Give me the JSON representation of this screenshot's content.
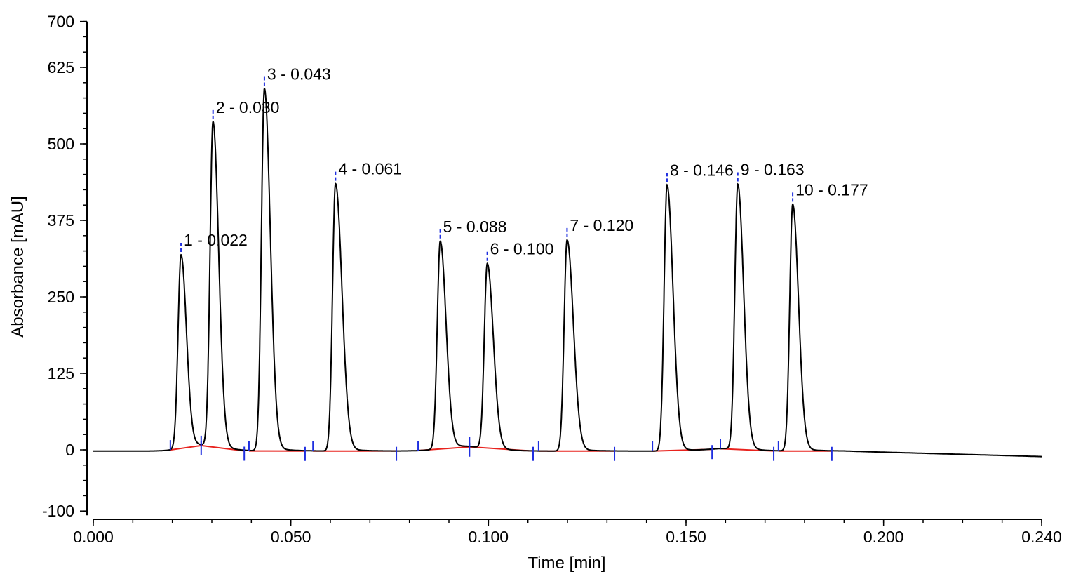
{
  "chart_data": {
    "type": "line",
    "title": "",
    "xlabel": "Time [min]",
    "ylabel": "Absorbance [mAU]",
    "xlim": [
      0.0,
      0.24
    ],
    "ylim": [
      -100,
      700
    ],
    "x_ticks": [
      "0.000",
      "0.050",
      "0.100",
      "0.150",
      "0.200",
      "0.240"
    ],
    "x_tick_values": [
      0.0,
      0.05,
      0.1,
      0.15,
      0.2,
      0.24
    ],
    "y_ticks": [
      "700",
      "625",
      "500",
      "375",
      "250",
      "125",
      "0",
      "-100"
    ],
    "y_tick_values": [
      700,
      625,
      500,
      375,
      250,
      125,
      0,
      -100
    ],
    "grid": false,
    "colors": {
      "trace": "#000000",
      "baseline": "#e8231e",
      "markers": "#1f2fe0"
    },
    "peaks": [
      {
        "label": "1 - 0.022",
        "rt": 0.0222,
        "height": 316,
        "start": 0.0195,
        "end": 0.0273
      },
      {
        "label": "2 - 0.030",
        "rt": 0.0303,
        "height": 531,
        "start": 0.0273,
        "end": 0.0382
      },
      {
        "label": "3 - 0.043",
        "rt": 0.0433,
        "height": 592,
        "start": 0.0394,
        "end": 0.0536
      },
      {
        "label": "4 - 0.061",
        "rt": 0.0613,
        "height": 437,
        "start": 0.0556,
        "end": 0.0767
      },
      {
        "label": "5 - 0.088",
        "rt": 0.0878,
        "height": 339,
        "start": 0.0822,
        "end": 0.0952
      },
      {
        "label": "6 - 0.100",
        "rt": 0.0997,
        "height": 302,
        "start": 0.0952,
        "end": 0.1113
      },
      {
        "label": "7 - 0.120",
        "rt": 0.1199,
        "height": 345,
        "start": 0.1127,
        "end": 0.1319
      },
      {
        "label": "8 - 0.146",
        "rt": 0.1452,
        "height": 435,
        "start": 0.1415,
        "end": 0.1566
      },
      {
        "label": "9 - 0.163",
        "rt": 0.1631,
        "height": 433,
        "start": 0.1587,
        "end": 0.1722
      },
      {
        "label": "10 - 0.177",
        "rt": 0.177,
        "height": 403,
        "start": 0.1734,
        "end": 0.1869
      }
    ]
  }
}
